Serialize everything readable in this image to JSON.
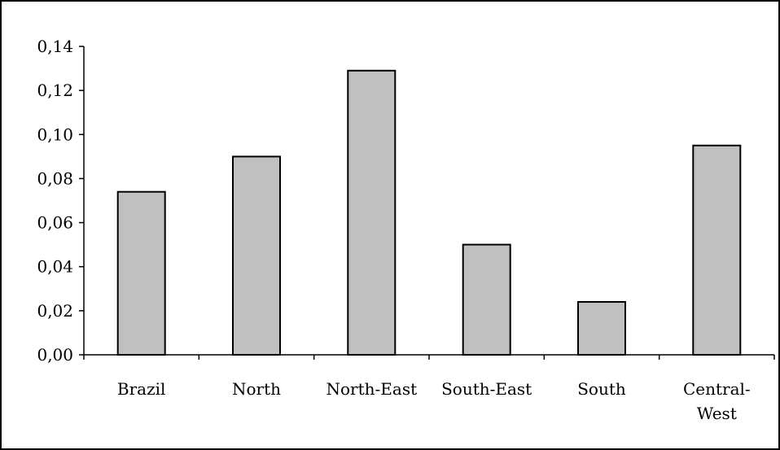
{
  "chart_data": {
    "type": "bar",
    "categories": [
      "Brazil",
      "North",
      "North-East",
      "South-East",
      "South",
      "Central-West"
    ],
    "category_lines": [
      [
        "Brazil"
      ],
      [
        "North"
      ],
      [
        "North-East"
      ],
      [
        "South-East"
      ],
      [
        "South"
      ],
      [
        "Central-",
        "West"
      ]
    ],
    "values": [
      0.074,
      0.09,
      0.129,
      0.05,
      0.024,
      0.095
    ],
    "y_ticks": [
      "0,00",
      "0,02",
      "0,04",
      "0,06",
      "0,08",
      "0,10",
      "0,12",
      "0,14"
    ],
    "ylim": [
      0,
      0.14
    ],
    "title": "",
    "xlabel": "",
    "ylabel": "",
    "grid": false,
    "bar_color": "#c0c0c0",
    "bar_edge_color": "#000000"
  }
}
